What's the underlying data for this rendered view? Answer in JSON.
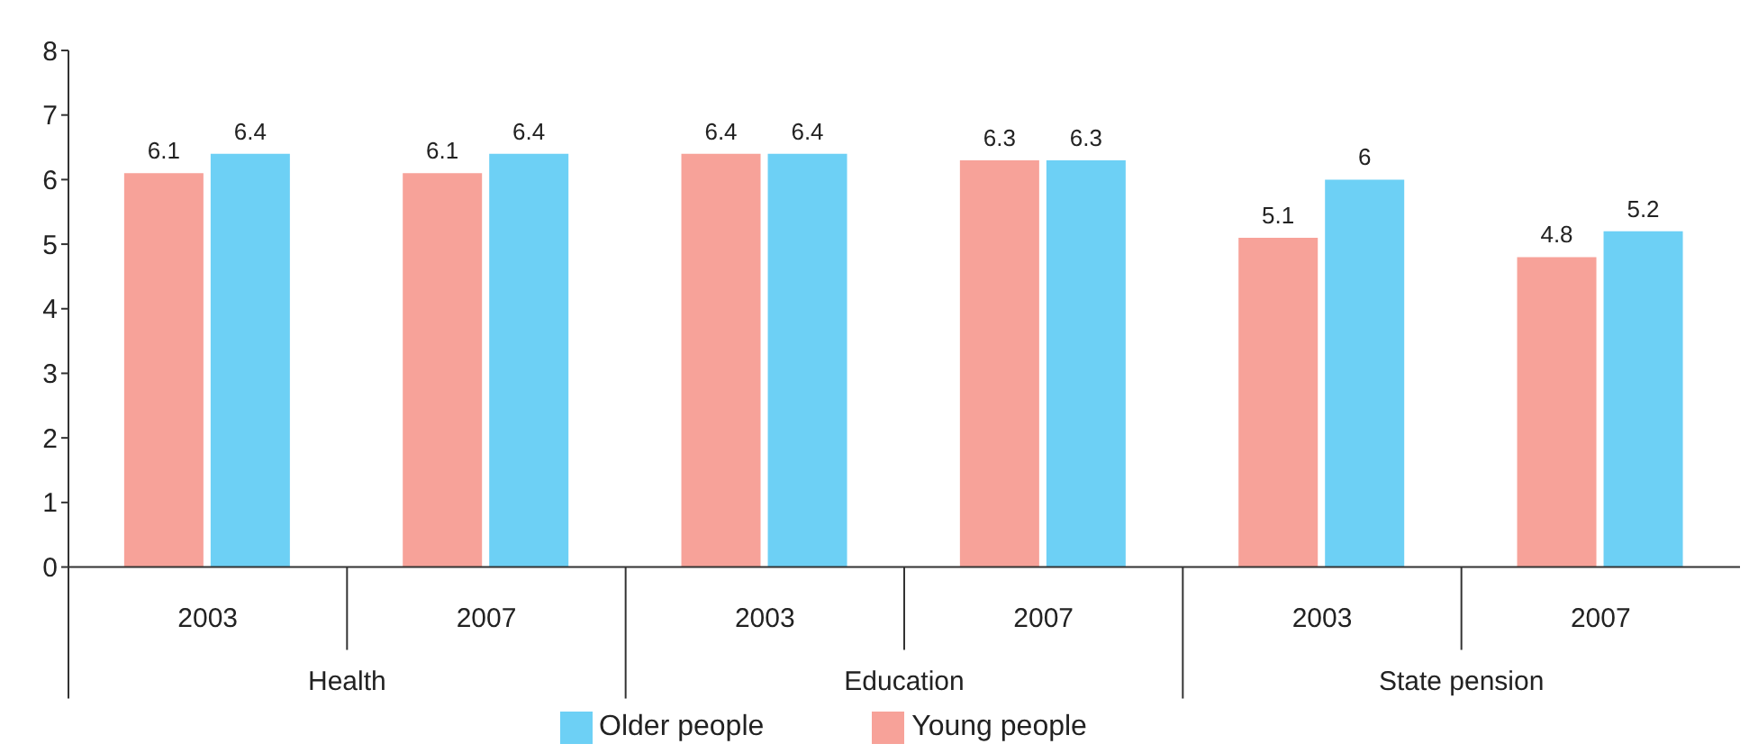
{
  "chart_data": {
    "type": "bar",
    "categories": [
      "2003",
      "2007",
      "2003",
      "2007",
      "2003",
      "2007"
    ],
    "annotations": [
      "Health",
      "Education",
      "State pension"
    ],
    "series": [
      {
        "name": "Young people",
        "color": "#f7a299",
        "values": [
          6.1,
          6.1,
          6.4,
          6.3,
          5.1,
          4.8
        ]
      },
      {
        "name": "Older people",
        "color": "#6dd0f5",
        "values": [
          6.4,
          6.4,
          6.4,
          6.3,
          6,
          5.2
        ]
      }
    ],
    "ylim": [
      0,
      8
    ],
    "yticks": [
      0,
      1,
      2,
      3,
      4,
      5,
      6,
      7,
      8
    ],
    "grid": false,
    "legend": "bottom",
    "data_labels": true
  }
}
